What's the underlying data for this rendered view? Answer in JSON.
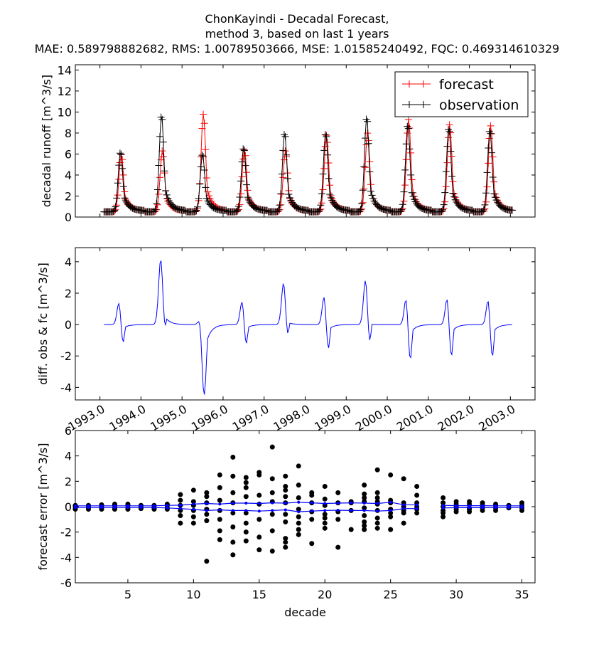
{
  "title": {
    "line1": "ChonKayindi  - Decadal Forecast,",
    "line2": "method 3, based on last 1 years",
    "line3": "MAE: 0.589798882682,   RMS: 1.00789503666,   MSE: 1.01585240492,   FQC: 0.469314610329"
  },
  "colors": {
    "forecast": "#ff0000",
    "observation": "#000000",
    "diff": "#0000ff",
    "error_points": "#000000",
    "error_band": "#0000ff"
  },
  "chart_data": [
    {
      "type": "line",
      "name": "runoff",
      "ylabel": "decadal runoff [m^3/s]",
      "ylim": [
        0,
        14.5
      ],
      "yticks": [
        0,
        2,
        4,
        6,
        8,
        10,
        12,
        14
      ],
      "xlim": [
        1992.4,
        2003.6
      ],
      "legend": {
        "placement": "top-right",
        "entries": [
          "forecast",
          "observation"
        ]
      },
      "peaks_forecast": [
        6.0,
        6.3,
        9.8,
        6.4,
        6.3,
        7.8,
        8.0,
        9.3,
        8.8,
        8.7
      ],
      "peaks_observation": [
        6.2,
        9.7,
        6.0,
        6.6,
        8.0,
        8.0,
        9.5,
        8.8,
        8.5,
        8.3
      ],
      "series": [
        {
          "name": "forecast",
          "marker": "+"
        },
        {
          "name": "observation",
          "marker": "+"
        }
      ]
    },
    {
      "type": "line",
      "name": "difference",
      "ylabel": "diff. obs & fc [m^3/s]",
      "ylim": [
        -4.8,
        4.9
      ],
      "yticks": [
        -4,
        -2,
        0,
        2,
        4
      ],
      "xlim": [
        1992.4,
        2003.6
      ],
      "xticks": [
        "1993.0",
        "1994.0",
        "1995.0",
        "1996.0",
        "1997.0",
        "1998.0",
        "1999.0",
        "2000.0",
        "2001.0",
        "2002.0",
        "2003.0"
      ],
      "series": [
        {
          "name": "diff"
        }
      ]
    },
    {
      "type": "scatter",
      "name": "forecast-error",
      "xlabel": "decade",
      "ylabel": "forecast error [m^3/s]",
      "xlim": [
        1,
        36
      ],
      "ylim": [
        -6,
        6
      ],
      "xticks": [
        5,
        10,
        15,
        20,
        25,
        30,
        35
      ],
      "yticks": [
        -6,
        -4,
        -2,
        0,
        2,
        4,
        6
      ],
      "upper_band": [
        0.07,
        0.07,
        0.07,
        0.07,
        0.07,
        0.07,
        0.07,
        0.1,
        0.12,
        0.2,
        0.25,
        0.2,
        0.28,
        0.28,
        0.25,
        0.3,
        0.28,
        0.35,
        0.3,
        0.25,
        0.28,
        0.3,
        0.28,
        0.25,
        0.35,
        0.15,
        0.15,
        null,
        0.1,
        0.08,
        0.08,
        0.08,
        0.07,
        0.07,
        0.07
      ],
      "lower_band": [
        -0.07,
        -0.07,
        -0.07,
        -0.07,
        -0.07,
        -0.07,
        -0.07,
        -0.1,
        -0.15,
        -0.22,
        -0.3,
        -0.25,
        -0.3,
        -0.3,
        -0.35,
        -0.3,
        -0.25,
        -0.4,
        -0.35,
        -0.3,
        -0.28,
        -0.3,
        -0.3,
        -0.35,
        -0.3,
        -0.15,
        -0.15,
        null,
        -0.1,
        -0.08,
        -0.08,
        -0.08,
        -0.07,
        -0.07,
        -0.07
      ],
      "points": [
        [
          1,
          0.1
        ],
        [
          1,
          -0.1
        ],
        [
          1,
          0.05
        ],
        [
          1,
          -0.2
        ],
        [
          2,
          0.1
        ],
        [
          2,
          -0.1
        ],
        [
          2,
          0.0
        ],
        [
          2,
          -0.2
        ],
        [
          3,
          0.15
        ],
        [
          3,
          -0.1
        ],
        [
          3,
          0.05
        ],
        [
          3,
          -0.2
        ],
        [
          4,
          0.1
        ],
        [
          4,
          -0.1
        ],
        [
          4,
          0.2
        ],
        [
          4,
          -0.2
        ],
        [
          5,
          0.1
        ],
        [
          5,
          -0.1
        ],
        [
          5,
          0.2
        ],
        [
          5,
          -0.2
        ],
        [
          6,
          0.1
        ],
        [
          6,
          -0.1
        ],
        [
          6,
          0.0
        ],
        [
          6,
          -0.15
        ],
        [
          7,
          0.1
        ],
        [
          7,
          -0.15
        ],
        [
          7,
          0.0
        ],
        [
          7,
          -0.2
        ],
        [
          8,
          0.2
        ],
        [
          8,
          -0.2
        ],
        [
          8,
          0.1
        ],
        [
          8,
          -0.1
        ],
        [
          9,
          0.95
        ],
        [
          9,
          0.5
        ],
        [
          9,
          0.1
        ],
        [
          9,
          -0.3
        ],
        [
          9,
          -0.7
        ],
        [
          9,
          -1.3
        ],
        [
          10,
          1.3
        ],
        [
          10,
          0.4
        ],
        [
          10,
          0.1
        ],
        [
          10,
          -0.3
        ],
        [
          10,
          -0.8
        ],
        [
          10,
          -1.3
        ],
        [
          11,
          1.1
        ],
        [
          11,
          0.8
        ],
        [
          11,
          0.3
        ],
        [
          11,
          -0.2
        ],
        [
          11,
          -0.6
        ],
        [
          11,
          -1.1
        ],
        [
          11,
          -4.3
        ],
        [
          12,
          2.5
        ],
        [
          12,
          1.5
        ],
        [
          12,
          0.5
        ],
        [
          12,
          -0.3
        ],
        [
          12,
          -1.0
        ],
        [
          12,
          -1.9
        ],
        [
          12,
          -2.6
        ],
        [
          13,
          3.9
        ],
        [
          13,
          2.4
        ],
        [
          13,
          1.1
        ],
        [
          13,
          0.3
        ],
        [
          13,
          -0.5
        ],
        [
          13,
          -1.6
        ],
        [
          13,
          -2.8
        ],
        [
          13,
          -3.8
        ],
        [
          14,
          2.3
        ],
        [
          14,
          1.9
        ],
        [
          14,
          1.5
        ],
        [
          14,
          0.8
        ],
        [
          14,
          -0.5
        ],
        [
          14,
          -1.3
        ],
        [
          14,
          -2.0
        ],
        [
          14,
          -2.7
        ],
        [
          15,
          2.7
        ],
        [
          15,
          2.5
        ],
        [
          15,
          0.9
        ],
        [
          15,
          0.2
        ],
        [
          15,
          -1.0
        ],
        [
          15,
          -2.4
        ],
        [
          15,
          -3.4
        ],
        [
          16,
          4.7
        ],
        [
          16,
          2.2
        ],
        [
          16,
          1.1
        ],
        [
          16,
          0.4
        ],
        [
          16,
          -0.6
        ],
        [
          16,
          -1.9
        ],
        [
          16,
          -3.5
        ],
        [
          17,
          2.4
        ],
        [
          17,
          1.6
        ],
        [
          17,
          1.3
        ],
        [
          17,
          0.8
        ],
        [
          17,
          0.3
        ],
        [
          17,
          -0.6
        ],
        [
          17,
          -1.2
        ],
        [
          17,
          -2.5
        ],
        [
          17,
          -2.8
        ],
        [
          17,
          -3.2
        ],
        [
          18,
          3.2
        ],
        [
          18,
          1.7
        ],
        [
          18,
          0.7
        ],
        [
          18,
          -0.2
        ],
        [
          18,
          -0.8
        ],
        [
          18,
          -1.3
        ],
        [
          18,
          -1.8
        ],
        [
          18,
          -2.2
        ],
        [
          19,
          1.1
        ],
        [
          19,
          0.9
        ],
        [
          19,
          0.3
        ],
        [
          19,
          -0.4
        ],
        [
          19,
          -1.0
        ],
        [
          19,
          -2.9
        ],
        [
          20,
          1.6
        ],
        [
          20,
          0.6
        ],
        [
          20,
          0.1
        ],
        [
          20,
          -0.6
        ],
        [
          20,
          -0.9
        ],
        [
          20,
          -1.3
        ],
        [
          20,
          -1.7
        ],
        [
          21,
          1.1
        ],
        [
          21,
          0.3
        ],
        [
          21,
          -0.4
        ],
        [
          21,
          -1.0
        ],
        [
          21,
          -3.2
        ],
        [
          22,
          0.4
        ],
        [
          22,
          0.3
        ],
        [
          22,
          -0.3
        ],
        [
          22,
          -1.8
        ],
        [
          23,
          1.7
        ],
        [
          23,
          1.0
        ],
        [
          23,
          0.7
        ],
        [
          23,
          0.4
        ],
        [
          23,
          -0.1
        ],
        [
          23,
          -0.7
        ],
        [
          23,
          -1.2
        ],
        [
          23,
          -1.5
        ],
        [
          23,
          -1.8
        ],
        [
          24,
          2.9
        ],
        [
          24,
          1.1
        ],
        [
          24,
          0.7
        ],
        [
          24,
          0.4
        ],
        [
          24,
          0.2
        ],
        [
          24,
          -0.3
        ],
        [
          24,
          -0.9
        ],
        [
          24,
          -1.3
        ],
        [
          24,
          -1.7
        ],
        [
          25,
          2.5
        ],
        [
          25,
          0.5
        ],
        [
          25,
          0.3
        ],
        [
          25,
          -0.2
        ],
        [
          25,
          -0.5
        ],
        [
          25,
          -0.8
        ],
        [
          25,
          -1.8
        ],
        [
          26,
          2.2
        ],
        [
          26,
          0.3
        ],
        [
          26,
          0.0
        ],
        [
          26,
          -0.3
        ],
        [
          26,
          -0.5
        ],
        [
          26,
          -1.3
        ],
        [
          27,
          1.6
        ],
        [
          27,
          0.9
        ],
        [
          27,
          0.3
        ],
        [
          27,
          0.0
        ],
        [
          27,
          -0.2
        ],
        [
          27,
          -0.5
        ],
        [
          29,
          0.7
        ],
        [
          29,
          0.3
        ],
        [
          29,
          0.0
        ],
        [
          29,
          -0.3
        ],
        [
          29,
          -0.5
        ],
        [
          29,
          -0.8
        ],
        [
          30,
          0.4
        ],
        [
          30,
          0.2
        ],
        [
          30,
          0.0
        ],
        [
          30,
          -0.2
        ],
        [
          30,
          -0.4
        ],
        [
          31,
          0.4
        ],
        [
          31,
          0.2
        ],
        [
          31,
          -0.1
        ],
        [
          31,
          -0.2
        ],
        [
          31,
          -0.4
        ],
        [
          32,
          0.3
        ],
        [
          32,
          0.1
        ],
        [
          32,
          -0.1
        ],
        [
          32,
          -0.3
        ],
        [
          33,
          0.2
        ],
        [
          33,
          0.1
        ],
        [
          33,
          -0.1
        ],
        [
          33,
          -0.3
        ],
        [
          34,
          0.1
        ],
        [
          34,
          -0.1
        ],
        [
          35,
          0.3
        ],
        [
          35,
          0.1
        ],
        [
          35,
          -0.1
        ],
        [
          35,
          -0.3
        ]
      ]
    }
  ]
}
